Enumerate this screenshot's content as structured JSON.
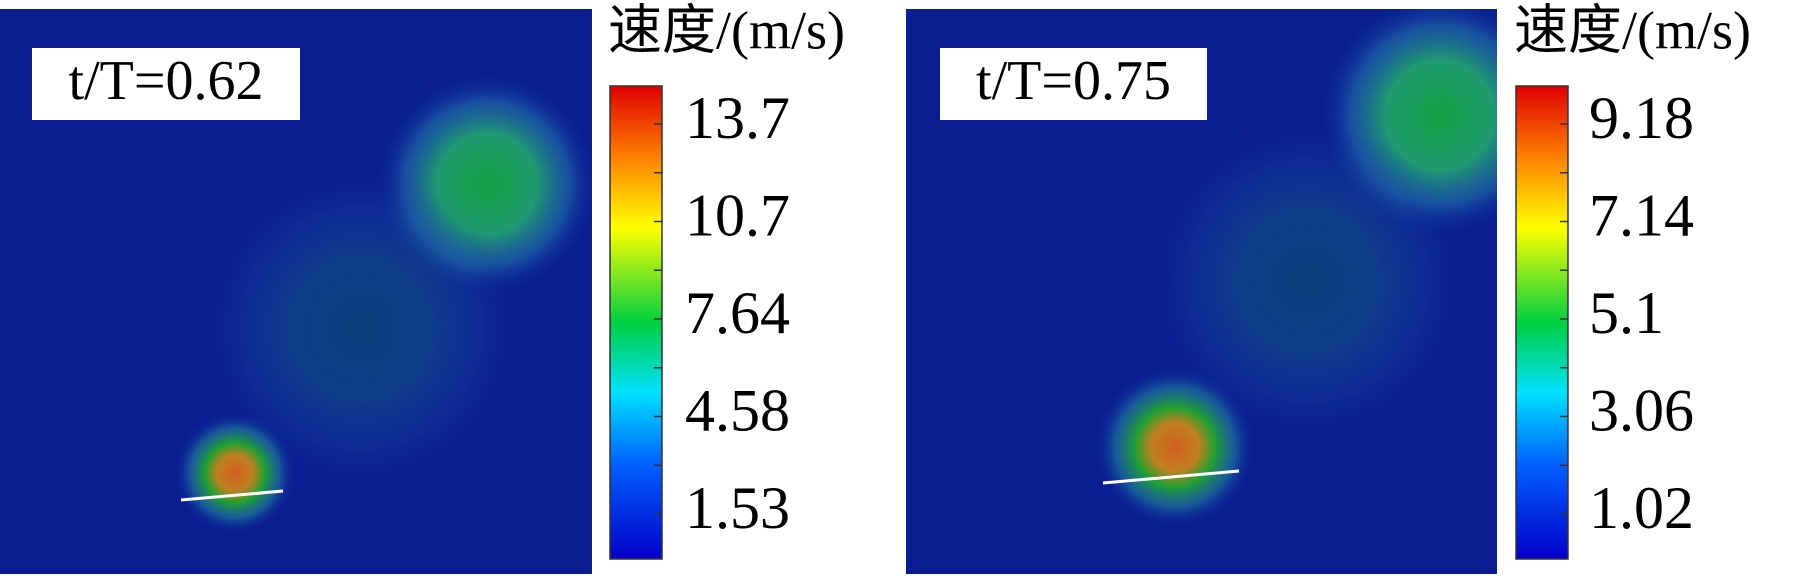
{
  "panels": [
    {
      "label": "t/T=0.62",
      "colorbar_title": "速度/(m/s)",
      "ticks": [
        13.7,
        10.7,
        7.64,
        4.58,
        1.53
      ]
    },
    {
      "label": "t/T=0.75",
      "colorbar_title": "速度/(m/s)",
      "ticks": [
        9.18,
        7.14,
        5.1,
        3.06,
        1.02
      ]
    }
  ]
}
